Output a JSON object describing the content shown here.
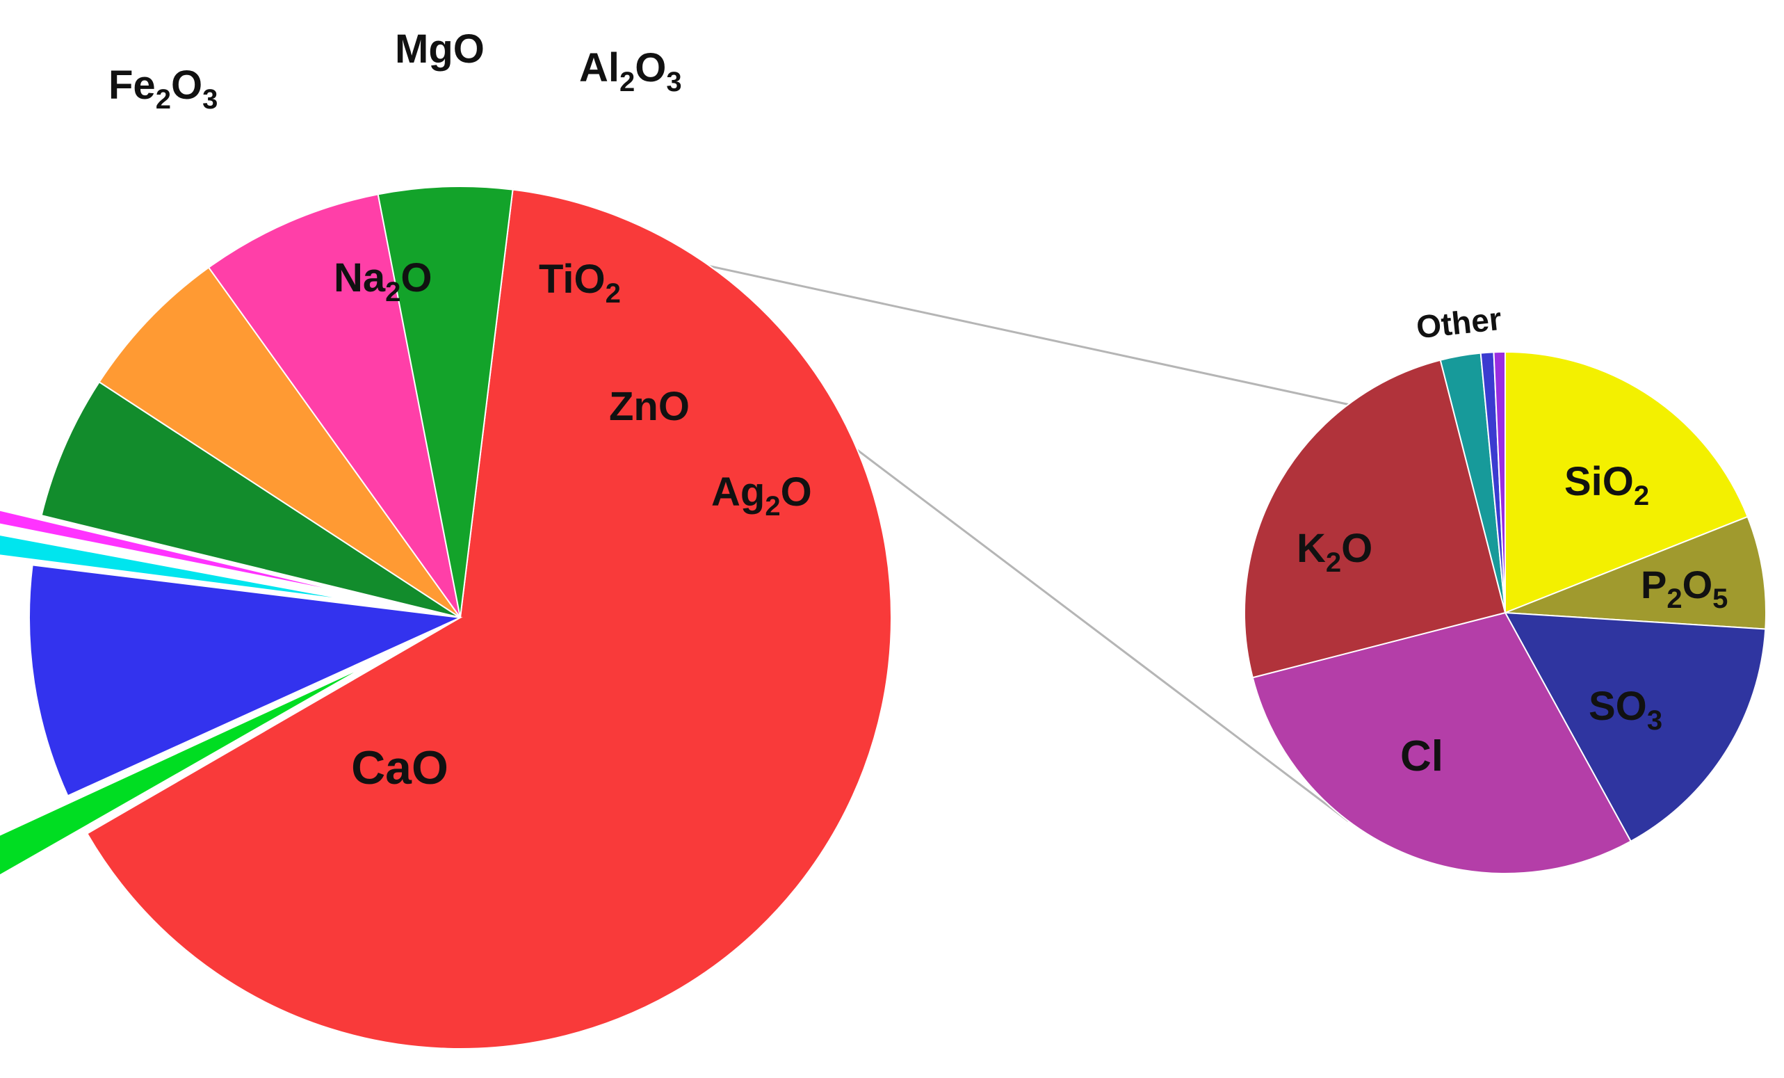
{
  "chart_data": [
    {
      "type": "pie",
      "title": "",
      "slices": [
        {
          "label": "CaO",
          "value": 66.0,
          "color": "#f93a3a"
        },
        {
          "label": "Fe2O3",
          "value": 1.6,
          "color": "#00dd22",
          "exploded": true
        },
        {
          "label": "Na2O",
          "value": 8.9,
          "color": "#3333ee"
        },
        {
          "label": "MgO",
          "value": 1.1,
          "color": "#00e5ee",
          "exploded": true
        },
        {
          "label": "Al2O3",
          "value": 0.8,
          "color": "#ff33ff",
          "exploded": true
        },
        {
          "label": "TiO2",
          "value": 5.5,
          "color": "#128c2c"
        },
        {
          "label": "ZnO",
          "value": 6.0,
          "color": "#ff9a33"
        },
        {
          "label": "Ag2O",
          "value": 7.0,
          "color": "#ff3fa8"
        },
        {
          "label": "",
          "value": 5.1,
          "color": "#13a32a",
          "expanded_into": "secondary"
        }
      ]
    },
    {
      "type": "pie",
      "title": "",
      "slices": [
        {
          "label": "SiO2",
          "value": 19.0,
          "color": "#f3f000"
        },
        {
          "label": "P2O5",
          "value": 7.0,
          "color": "#a09a2e"
        },
        {
          "label": "SO3",
          "value": 16.0,
          "color": "#2f35a0"
        },
        {
          "label": "Cl",
          "value": 29.0,
          "color": "#b43ea8"
        },
        {
          "label": "K2O",
          "value": 25.0,
          "color": "#b1333b"
        },
        {
          "label": "Other",
          "value": 2.5,
          "color": "#179a9a"
        },
        {
          "label": "",
          "value": 0.8,
          "color": "#3b3bd0"
        },
        {
          "label": "",
          "value": 0.7,
          "color": "#9a2ee0"
        }
      ]
    }
  ],
  "labels": {
    "CaO": "CaO",
    "Fe2O3": {
      "a": "Fe",
      "s1": "2",
      "b": "O",
      "s2": "3"
    },
    "Na2O": {
      "a": "Na",
      "s1": "2",
      "b": "O"
    },
    "MgO": "MgO",
    "Al2O3": {
      "a": "Al",
      "s1": "2",
      "b": "O",
      "s2": "3"
    },
    "TiO2": {
      "a": "TiO",
      "s1": "2"
    },
    "ZnO": "ZnO",
    "Ag2O": {
      "a": "Ag",
      "s1": "2",
      "b": "O"
    },
    "SiO2": {
      "a": "SiO",
      "s1": "2"
    },
    "P2O5": {
      "a": "P",
      "s1": "2",
      "b": "O",
      "s2": "5"
    },
    "SO3": {
      "a": "SO",
      "s1": "3"
    },
    "Cl": "Cl",
    "K2O": {
      "a": "K",
      "s1": "2",
      "b": "O"
    },
    "Other": "Other"
  }
}
